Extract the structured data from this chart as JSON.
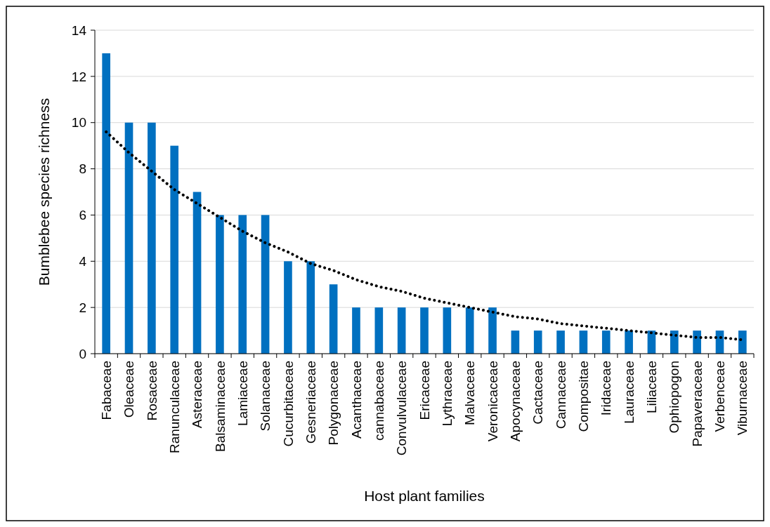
{
  "chart_data": {
    "type": "bar",
    "xlabel": "Host plant families",
    "ylabel": "Bumblebee species richness",
    "categories": [
      "Fabaceae",
      "Oleaceae",
      "Rosaceae",
      "Ranunculaceae",
      "Asteraceae",
      "Balsaminaceae",
      "Lamiaceae",
      "Solanaceae",
      "Cucurbitaceae",
      "Gesneriaceae",
      "Polygonaceae",
      "Acanthaceae",
      "cannabaceae",
      "Convulvulaceae",
      "Ericaceae",
      "Lythraceae",
      "Malvaceae",
      "Veronicaceae",
      "Apocynaceae",
      "Cactaceae",
      "Cannaceae",
      "Compositae",
      "Iridaceae",
      "Lauraceae",
      "Liliaceae",
      "Ophiopogon",
      "Papaveraceae",
      "Verbenceae",
      "Viburnaceae"
    ],
    "series": [
      {
        "color": "#0070c0",
        "values": [
          13,
          10,
          10,
          9,
          7,
          6,
          6,
          6,
          4,
          4,
          3,
          2,
          2,
          2,
          2,
          2,
          2,
          2,
          1,
          1,
          1,
          1,
          1,
          1,
          1,
          1,
          1,
          1,
          1
        ]
      },
      {
        "type": "line",
        "color": "#000000",
        "line_style": "dotted",
        "values": [
          9.6,
          8.7,
          7.9,
          7.1,
          6.5,
          5.9,
          5.3,
          4.8,
          4.4,
          3.9,
          3.6,
          3.2,
          2.9,
          2.7,
          2.4,
          2.2,
          2.0,
          1.8,
          1.6,
          1.5,
          1.3,
          1.2,
          1.1,
          1.0,
          0.9,
          0.8,
          0.7,
          0.7,
          0.6
        ]
      }
    ],
    "ylim": [
      0,
      14
    ],
    "yticks": [
      0,
      2,
      4,
      6,
      8,
      10,
      12,
      14
    ],
    "grid": "y"
  }
}
